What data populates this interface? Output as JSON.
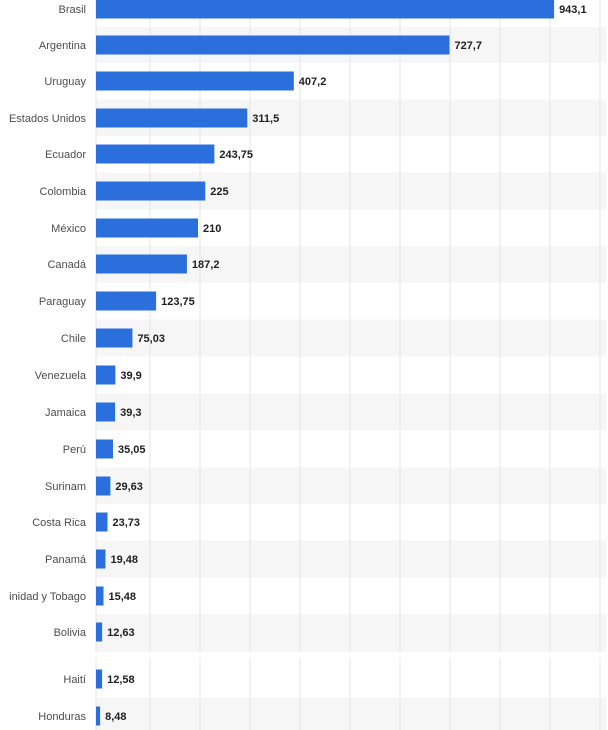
{
  "chart_data": {
    "type": "bar",
    "orientation": "horizontal",
    "categories": [
      "Brasil",
      "Argentina",
      "Uruguay",
      "Estados Unidos",
      "Ecuador",
      "Colombia",
      "México",
      "Canadá",
      "Paraguay",
      "Chile",
      "Venezuela",
      "Jamaica",
      "Perú",
      "Surinam",
      "Costa Rica",
      "Panamá",
      "inidad y Tobago",
      "Bolivia",
      "Haití",
      "Honduras"
    ],
    "values": [
      943.1,
      727.7,
      407.2,
      311.5,
      243.75,
      225,
      210,
      187.2,
      123.75,
      75.03,
      39.9,
      39.3,
      35.05,
      29.63,
      23.73,
      19.48,
      15.48,
      12.63,
      12.58,
      8.48
    ],
    "value_labels": [
      "943,1",
      "727,7",
      "407,2",
      "311,5",
      "243,75",
      "225",
      "210",
      "187,2",
      "123,75",
      "75,03",
      "39,9",
      "39,3",
      "35,05",
      "29,63",
      "23,73",
      "19,48",
      "15,48",
      "12,63",
      "12,58",
      "8,48"
    ],
    "title": "",
    "xlabel": "",
    "ylabel": "",
    "xlim": [
      0,
      1050
    ],
    "grid": true,
    "legend": "none",
    "bar_color": "#2a6fdb",
    "grid_color": "#e4e4e4",
    "band_color": "#f6f6f6"
  }
}
